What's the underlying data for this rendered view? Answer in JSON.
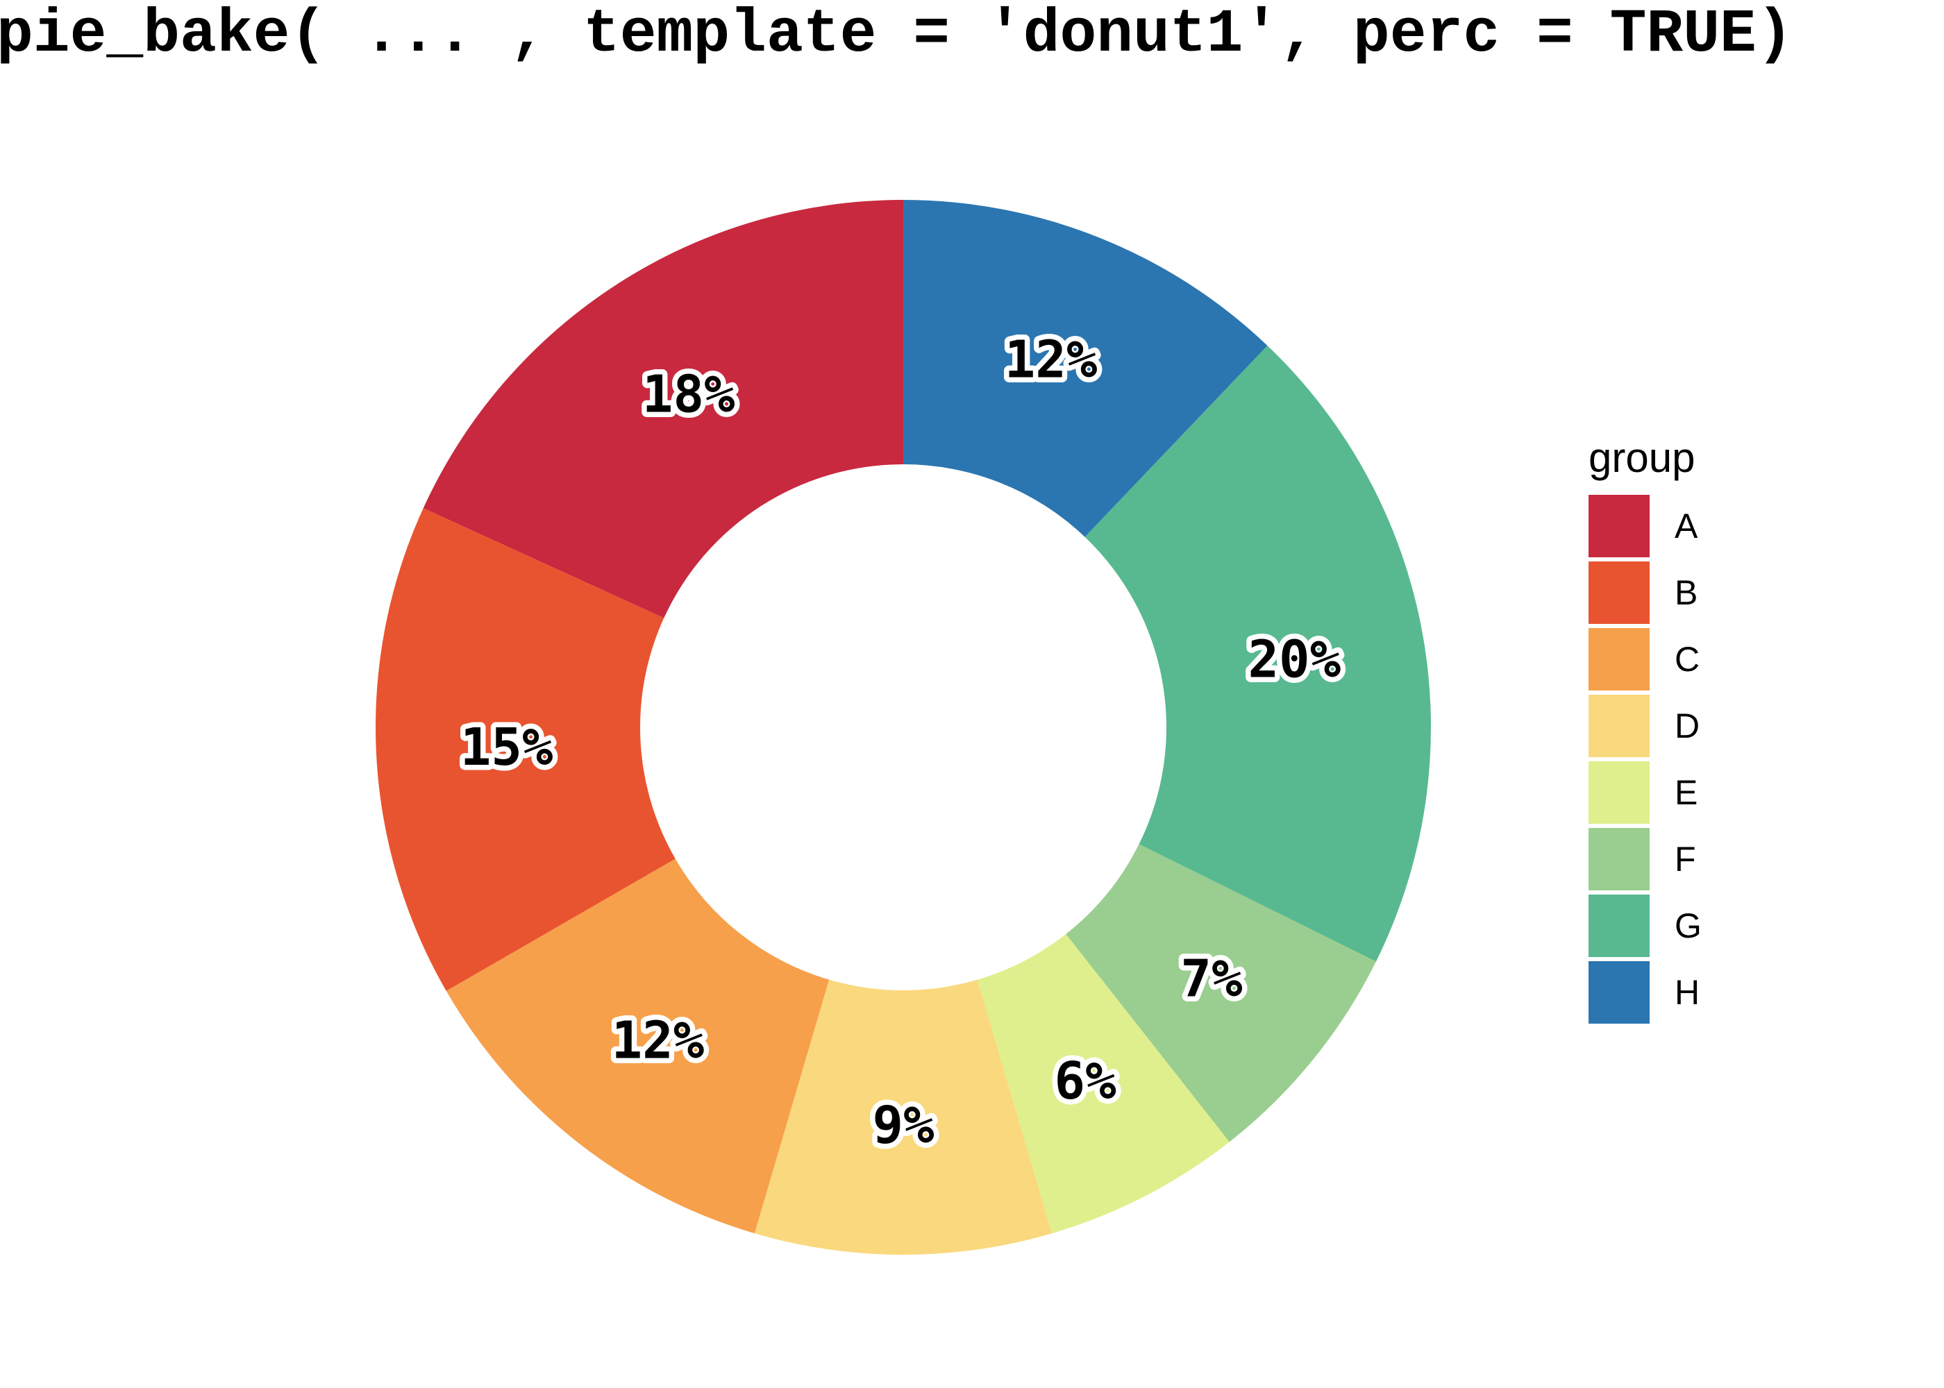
{
  "title": "pie_bake( ... , template = 'donut1', perc = TRUE)",
  "legend": {
    "title": "group",
    "entries": [
      {
        "label": "A",
        "color": "#C8293E"
      },
      {
        "label": "B",
        "color": "#E95430"
      },
      {
        "label": "C",
        "color": "#F7A04B"
      },
      {
        "label": "D",
        "color": "#FAD87D"
      },
      {
        "label": "E",
        "color": "#DFEF8D"
      },
      {
        "label": "F",
        "color": "#9ACE90"
      },
      {
        "label": "G",
        "color": "#58B990"
      },
      {
        "label": "H",
        "color": "#2B76B1"
      }
    ]
  },
  "chart_data": {
    "type": "pie",
    "variant": "donut",
    "title": "pie_bake( ... , template = 'donut1', perc = TRUE)",
    "categories": [
      "A",
      "B",
      "C",
      "D",
      "E",
      "F",
      "G",
      "H"
    ],
    "values": [
      18,
      15,
      12,
      9,
      6,
      7,
      20,
      12
    ],
    "unit": "percent",
    "slice_labels": [
      "18%",
      "15%",
      "12%",
      "9%",
      "6%",
      "7%",
      "20%",
      "12%"
    ],
    "colors": [
      "#C8293E",
      "#E95430",
      "#F7A04B",
      "#FAD87D",
      "#DFEF8D",
      "#9ACE90",
      "#58B990",
      "#2B76B1"
    ],
    "start_angle_deg": 0,
    "direction": "counterclockwise",
    "inner_radius_ratio": 0.5,
    "legend_title": "group",
    "legend_position": "right"
  }
}
